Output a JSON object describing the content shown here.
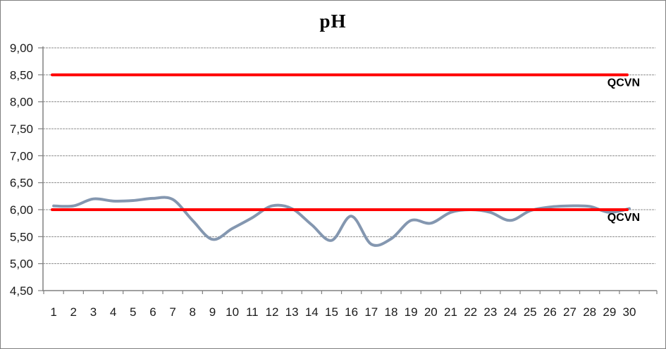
{
  "chart_data": {
    "type": "line",
    "title": "pH",
    "xlabel": "",
    "ylabel": "",
    "categories": [
      "1",
      "2",
      "3",
      "4",
      "5",
      "6",
      "7",
      "8",
      "9",
      "10",
      "11",
      "12",
      "13",
      "14",
      "15",
      "16",
      "17",
      "18",
      "19",
      "20",
      "21",
      "22",
      "23",
      "24",
      "25",
      "26",
      "27",
      "28",
      "29",
      "30"
    ],
    "series": [
      {
        "name": "pH",
        "values": [
          6.07,
          6.07,
          6.2,
          6.16,
          6.17,
          6.21,
          6.19,
          5.8,
          5.45,
          5.65,
          5.85,
          6.07,
          6.02,
          5.72,
          5.43,
          5.88,
          5.36,
          5.46,
          5.8,
          5.75,
          5.95,
          6.0,
          5.95,
          5.8,
          5.98,
          6.05,
          6.07,
          6.06,
          5.95,
          6.02
        ],
        "color": "#8497b0",
        "smooth": true
      }
    ],
    "reference_lines": [
      {
        "label": "QCVN",
        "value": 8.5,
        "color": "#ff0000"
      },
      {
        "label": "QCVN",
        "value": 6.0,
        "color": "#ff0000"
      }
    ],
    "ylim": [
      4.5,
      9.0
    ],
    "ytick_step": 0.5,
    "ytick_labels": [
      "4,50",
      "5,00",
      "5,50",
      "6,00",
      "6,50",
      "7,00",
      "7,50",
      "8,00",
      "8,50",
      "9,00"
    ],
    "decimal_separator": ",",
    "grid": true,
    "legend_position": "none"
  },
  "colors": {
    "background": "#ffffff",
    "border": "#7f7f7f",
    "grid": "#8f8f8f",
    "axis": "#808080",
    "tick_text": "#1a1a1a",
    "ref_label_text": "#000000"
  }
}
